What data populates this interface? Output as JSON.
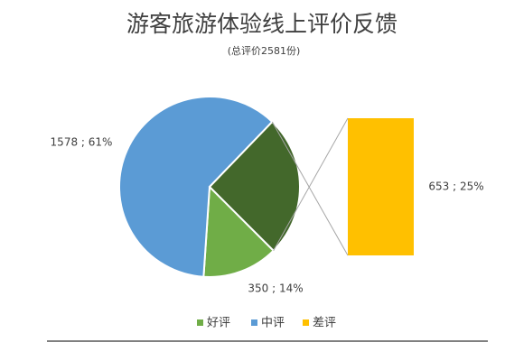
{
  "chart_data": {
    "type": "pie-of-bar",
    "title": "游客旅游体验线上评价反馈",
    "subtitle": "(总评价2581份)",
    "categories": [
      "好评",
      "中评",
      "差评"
    ],
    "values": [
      350,
      1578,
      653
    ],
    "value_labels": [
      "350 ; 14%",
      "1578 ; 61%",
      "653 ; 25%"
    ],
    "colors": [
      "#70ad47",
      "#5b9bd5",
      "#ffc000"
    ],
    "split_slice_color": "#43682b",
    "legend": "bottom"
  }
}
